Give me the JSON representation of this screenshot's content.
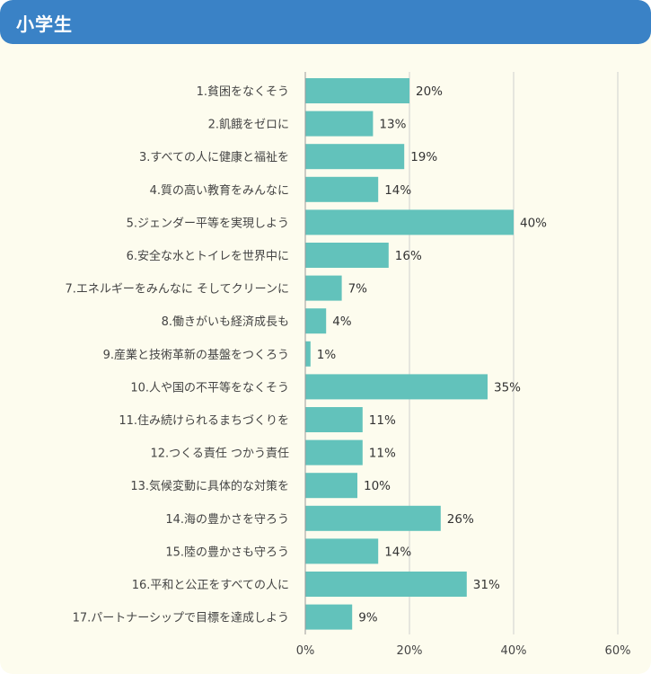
{
  "header": {
    "title": "小学生"
  },
  "chart_data": {
    "type": "bar",
    "orientation": "horizontal",
    "categories": [
      "1.貧困をなくそう",
      "2.飢餓をゼロに",
      "3.すべての人に健康と福祉を",
      "4.質の高い教育をみんなに",
      "5.ジェンダー平等を実現しよう",
      "6.安全な水とトイレを世界中に",
      "7.エネルギーをみんなに そしてクリーンに",
      "8.働きがいも経済成長も",
      "9.産業と技術革新の基盤をつくろう",
      "10.人や国の不平等をなくそう",
      "11.住み続けられるまちづくりを",
      "12.つくる責任 つかう責任",
      "13.気候変動に具体的な対策を",
      "14.海の豊かさを守ろう",
      "15.陸の豊かさも守ろう",
      "16.平和と公正をすべての人に",
      "17.パートナーシップで目標を達成しよう"
    ],
    "values": [
      20,
      13,
      19,
      14,
      40,
      16,
      7,
      4,
      1,
      35,
      11,
      11,
      10,
      26,
      14,
      31,
      9
    ],
    "value_labels": [
      "20%",
      "13%",
      "19%",
      "14%",
      "40%",
      "16%",
      "7%",
      "4%",
      "1%",
      "35%",
      "11%",
      "11%",
      "10%",
      "26%",
      "14%",
      "31%",
      "9%"
    ],
    "xlim": [
      0,
      60
    ],
    "xticks": [
      0,
      20,
      40,
      60
    ],
    "xtick_labels": [
      "0%",
      "20%",
      "40%",
      "60%"
    ],
    "grid": true,
    "bar_color": "#62c2bb",
    "grid_color": "#cfcfcf"
  }
}
